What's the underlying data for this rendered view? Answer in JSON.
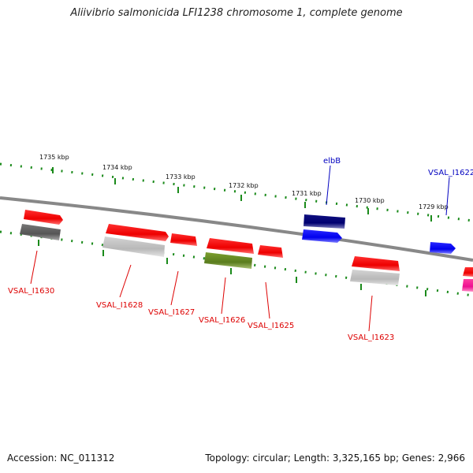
{
  "title": "Aliivibrio salmonicida LFI1238 chromosome 1, complete genome",
  "footer": {
    "accession": "Accession: NC_011312",
    "stats": "Topology: circular; Length: 3,325,165 bp; Genes: 2,966"
  },
  "ticks": [
    "1735 kbp",
    "1734 kbp",
    "1733 kbp",
    "1732 kbp",
    "1731 kbp",
    "1730 kbp",
    "1729 kbp"
  ],
  "genes": [
    {
      "label": "elbB",
      "color": "#0000c0"
    },
    {
      "label": "VSAL_I1622",
      "color": "#0000c0"
    },
    {
      "label": "VSAL_I1630",
      "color": "#dd0000"
    },
    {
      "label": "VSAL_I1628",
      "color": "#dd0000"
    },
    {
      "label": "VSAL_I1627",
      "color": "#dd0000"
    },
    {
      "label": "VSAL_I1626",
      "color": "#dd0000"
    },
    {
      "label": "VSAL_I1625",
      "color": "#dd0000"
    },
    {
      "label": "VSAL_I1623",
      "color": "#dd0000"
    }
  ],
  "colors": {
    "backbone": "#888888",
    "tick_dots": "#1a8a1a",
    "cds_red": "#ff0000",
    "cds_blue": "#0000ff",
    "cds_navy": "#000080",
    "cds_gray": "#777777",
    "cds_lightgray": "#bbbbbb",
    "cds_olive": "#6b8e23",
    "cds_magenta": "#ff1493"
  }
}
